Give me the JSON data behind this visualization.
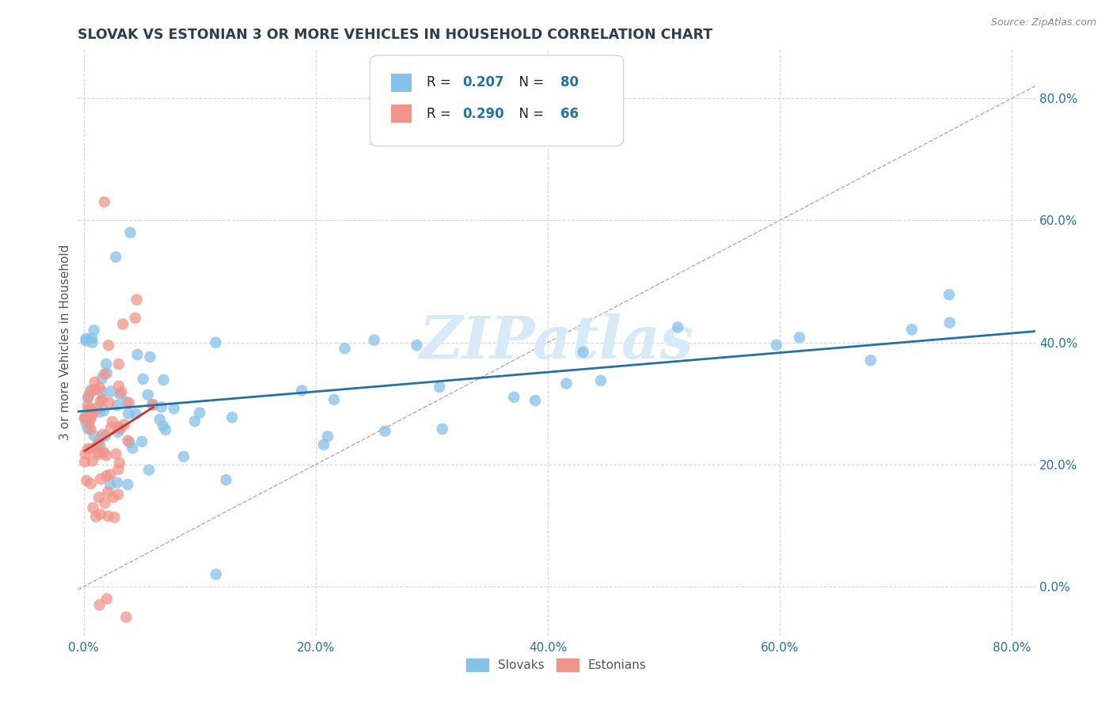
{
  "title": "SLOVAK VS ESTONIAN 3 OR MORE VEHICLES IN HOUSEHOLD CORRELATION CHART",
  "source": "Source: ZipAtlas.com",
  "ylabel": "3 or more Vehicles in Household",
  "xlim": [
    -0.005,
    0.82
  ],
  "ylim": [
    -0.08,
    0.88
  ],
  "blue_R": 0.207,
  "blue_N": 80,
  "pink_R": 0.29,
  "pink_N": 66,
  "blue_color": "#85C1E9",
  "pink_color": "#F1948A",
  "blue_line_color": "#2471A3",
  "pink_line_color": "#C0392B",
  "diagonal_color": "#C8A0B0",
  "grid_color": "#D5D8DC",
  "title_color": "#2C3E50",
  "axis_label_color": "#2471A3",
  "watermark_color": "#D6EAF8",
  "legend_label_color": "#2471A3",
  "x_ticks": [
    0.0,
    0.2,
    0.4,
    0.6,
    0.8
  ],
  "y_ticks": [
    0.0,
    0.2,
    0.4,
    0.6,
    0.8
  ]
}
